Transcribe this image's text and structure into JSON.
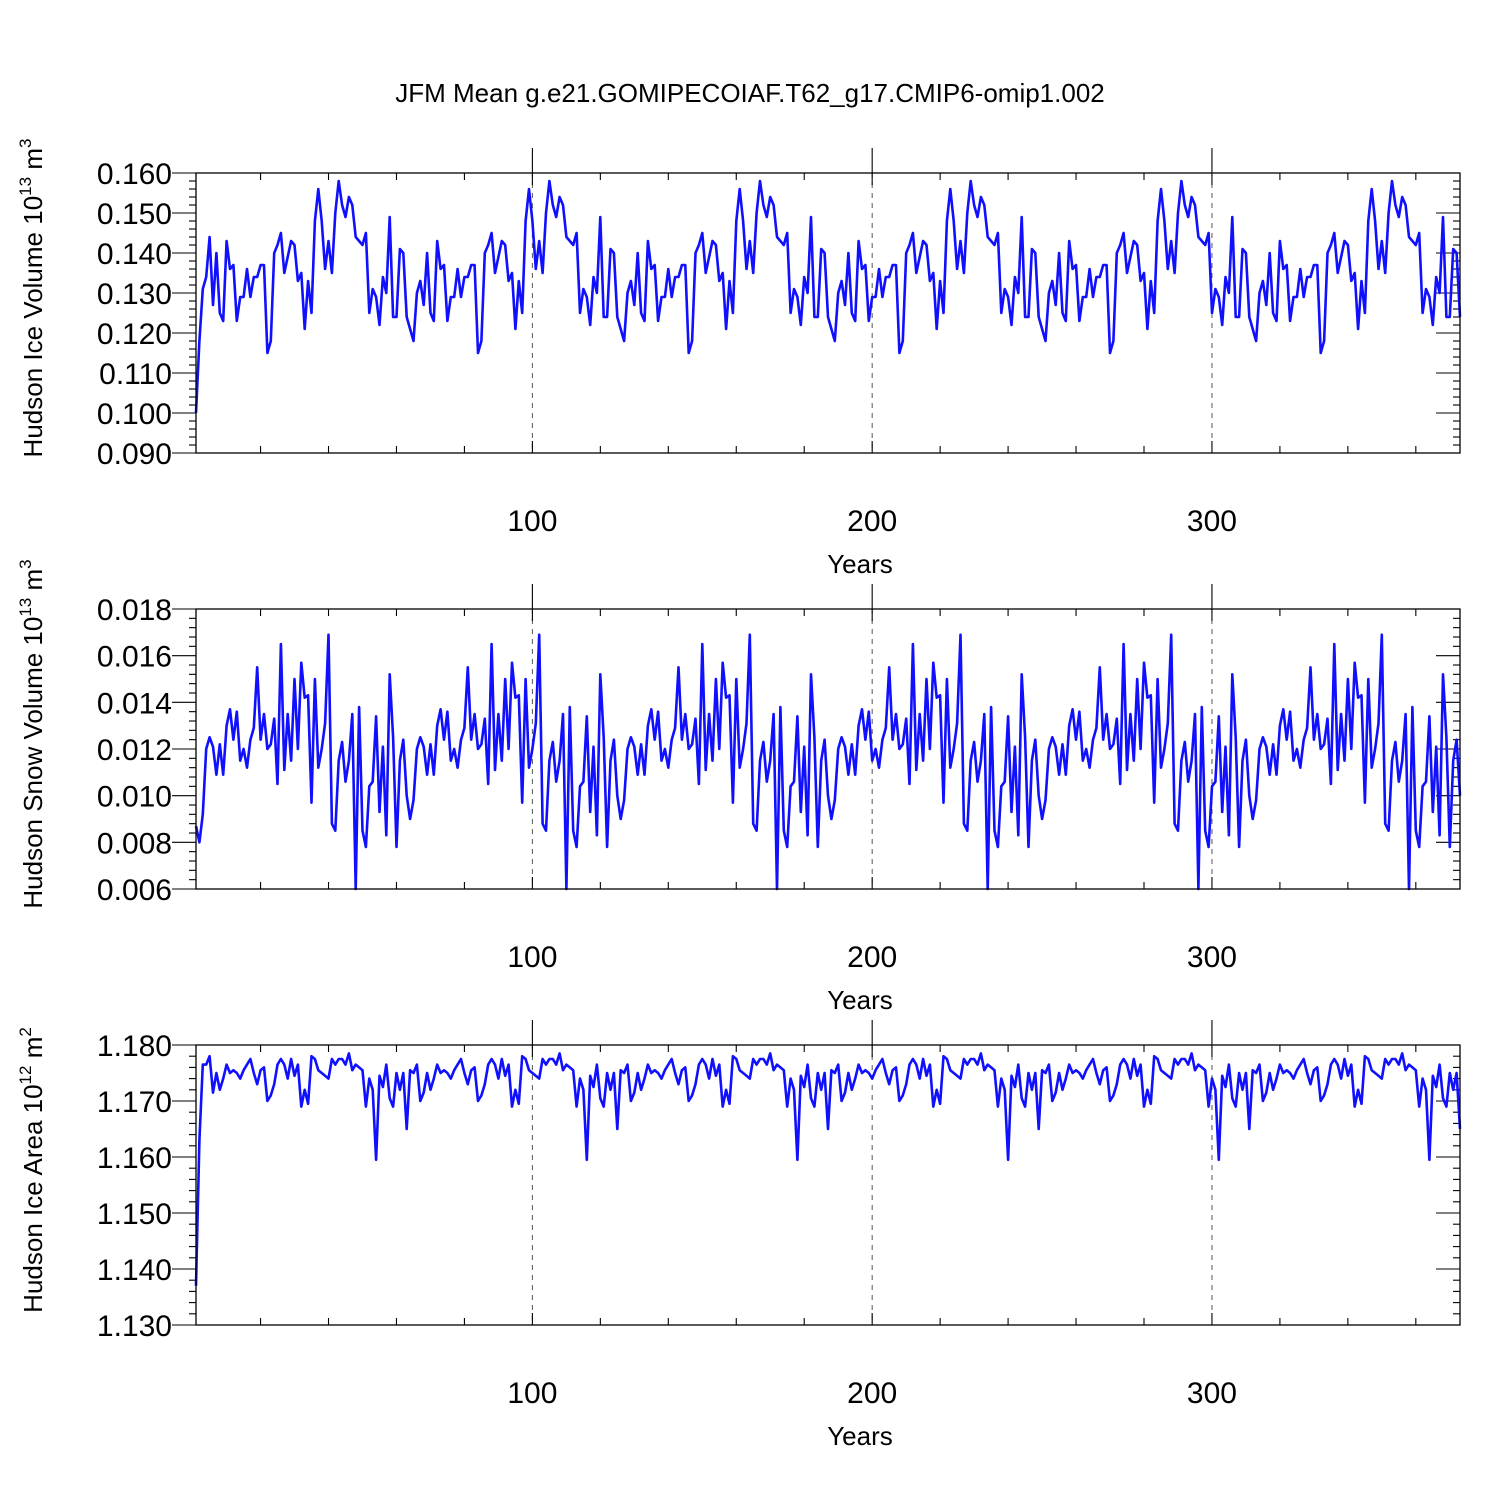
{
  "title": "JFM Mean g.e21.GOMIPECOIAF.T62_g17.CMIP6-omip1.002",
  "colors": {
    "series": "#1010ff",
    "axis": "#000000",
    "reference_line": "#555555"
  },
  "chart_data": [
    {
      "type": "line",
      "ylabel": {
        "main": "Hudson Ice Volume 10",
        "exp": "13",
        "unit": " m",
        "unit_exp": "3"
      },
      "xlabel": "Years",
      "xlim": [
        1,
        373
      ],
      "ylim": [
        0.09,
        0.16
      ],
      "x_ticks": [
        100,
        200,
        300
      ],
      "x_tick_labels": [
        "100",
        "200",
        "300"
      ],
      "y_ticks": [
        0.09,
        0.1,
        0.11,
        0.12,
        0.13,
        0.14,
        0.15,
        0.16
      ],
      "y_tick_labels": [
        "0.090",
        "0.100",
        "0.110",
        "0.120",
        "0.130",
        "0.140",
        "0.150",
        "0.160"
      ],
      "reference_lines_x": [
        100,
        200,
        300
      ],
      "period": 62,
      "head": [
        0.1,
        0.118,
        0.131,
        0.134,
        0.144
      ],
      "cycle": [
        0.127,
        0.14,
        0.125,
        0.123,
        0.143,
        0.136,
        0.137,
        0.123,
        0.129,
        0.129,
        0.136,
        0.129,
        0.134,
        0.134,
        0.137,
        0.137,
        0.115,
        0.118,
        0.14,
        0.142,
        0.145,
        0.135,
        0.139,
        0.143,
        0.142,
        0.133,
        0.135,
        0.121,
        0.133,
        0.125,
        0.148,
        0.156,
        0.148,
        0.136,
        0.143,
        0.135,
        0.15,
        0.158,
        0.152,
        0.149,
        0.154,
        0.152,
        0.144,
        0.143,
        0.142,
        0.145,
        0.125,
        0.131,
        0.129,
        0.122,
        0.134,
        0.13,
        0.149,
        0.124,
        0.124,
        0.141,
        0.14,
        0.124,
        0.121,
        0.118,
        0.13,
        0.133
      ]
    },
    {
      "type": "line",
      "ylabel": {
        "main": "Hudson Snow Volume 10",
        "exp": "13",
        "unit": " m",
        "unit_exp": "3"
      },
      "xlabel": "Years",
      "xlim": [
        1,
        373
      ],
      "ylim": [
        0.006,
        0.018
      ],
      "x_ticks": [
        100,
        200,
        300
      ],
      "x_tick_labels": [
        "100",
        "200",
        "300"
      ],
      "y_ticks": [
        0.006,
        0.008,
        0.01,
        0.012,
        0.014,
        0.016,
        0.018
      ],
      "y_tick_labels": [
        "0.006",
        "0.008",
        "0.010",
        "0.012",
        "0.014",
        "0.016",
        "0.018"
      ],
      "reference_lines_x": [
        100,
        200,
        300
      ],
      "period": 62,
      "head": [
        0.0087,
        0.008,
        0.0092,
        0.012,
        0.0125
      ],
      "cycle": [
        0.0121,
        0.0109,
        0.0122,
        0.0109,
        0.013,
        0.0137,
        0.0124,
        0.0136,
        0.0115,
        0.012,
        0.0112,
        0.0124,
        0.0129,
        0.0155,
        0.0124,
        0.0135,
        0.012,
        0.0122,
        0.0133,
        0.0105,
        0.0165,
        0.0111,
        0.0135,
        0.0115,
        0.015,
        0.012,
        0.0157,
        0.0142,
        0.0143,
        0.0097,
        0.015,
        0.0112,
        0.012,
        0.0131,
        0.0169,
        0.0088,
        0.0085,
        0.0115,
        0.0123,
        0.0106,
        0.0115,
        0.0135,
        0.006,
        0.0138,
        0.0085,
        0.0078,
        0.0104,
        0.0106,
        0.0134,
        0.0093,
        0.0121,
        0.0083,
        0.0152,
        0.0125,
        0.0078,
        0.0115,
        0.0124,
        0.01,
        0.009,
        0.0098,
        0.012,
        0.0125
      ]
    },
    {
      "type": "line",
      "ylabel": {
        "main": "Hudson Ice Area 10",
        "exp": "12",
        "unit": " m",
        "unit_exp": "2"
      },
      "xlabel": "Years",
      "xlim": [
        1,
        373
      ],
      "ylim": [
        1.13,
        1.18
      ],
      "x_ticks": [
        100,
        200,
        300
      ],
      "x_tick_labels": [
        "100",
        "200",
        "300"
      ],
      "y_ticks": [
        1.13,
        1.14,
        1.15,
        1.16,
        1.17,
        1.18
      ],
      "y_tick_labels": [
        "1.130",
        "1.140",
        "1.150",
        "1.160",
        "1.170",
        "1.180"
      ],
      "reference_lines_x": [
        100,
        200,
        300
      ],
      "period": 62,
      "head": [
        1.137,
        1.163,
        1.1765,
        1.1765,
        1.178
      ],
      "cycle": [
        1.1715,
        1.175,
        1.172,
        1.174,
        1.1765,
        1.175,
        1.1755,
        1.175,
        1.174,
        1.1755,
        1.1765,
        1.1775,
        1.175,
        1.173,
        1.1755,
        1.176,
        1.17,
        1.171,
        1.173,
        1.1765,
        1.1775,
        1.1765,
        1.174,
        1.1775,
        1.1745,
        1.1765,
        1.169,
        1.172,
        1.1695,
        1.178,
        1.1775,
        1.1755,
        1.175,
        1.1745,
        1.174,
        1.1775,
        1.1765,
        1.1775,
        1.1775,
        1.1765,
        1.1785,
        1.1755,
        1.1765,
        1.176,
        1.1755,
        1.169,
        1.174,
        1.172,
        1.1595,
        1.1745,
        1.1725,
        1.1765,
        1.1705,
        1.169,
        1.175,
        1.172,
        1.175,
        1.165,
        1.1755,
        1.175,
        1.1765,
        1.17
      ]
    }
  ]
}
